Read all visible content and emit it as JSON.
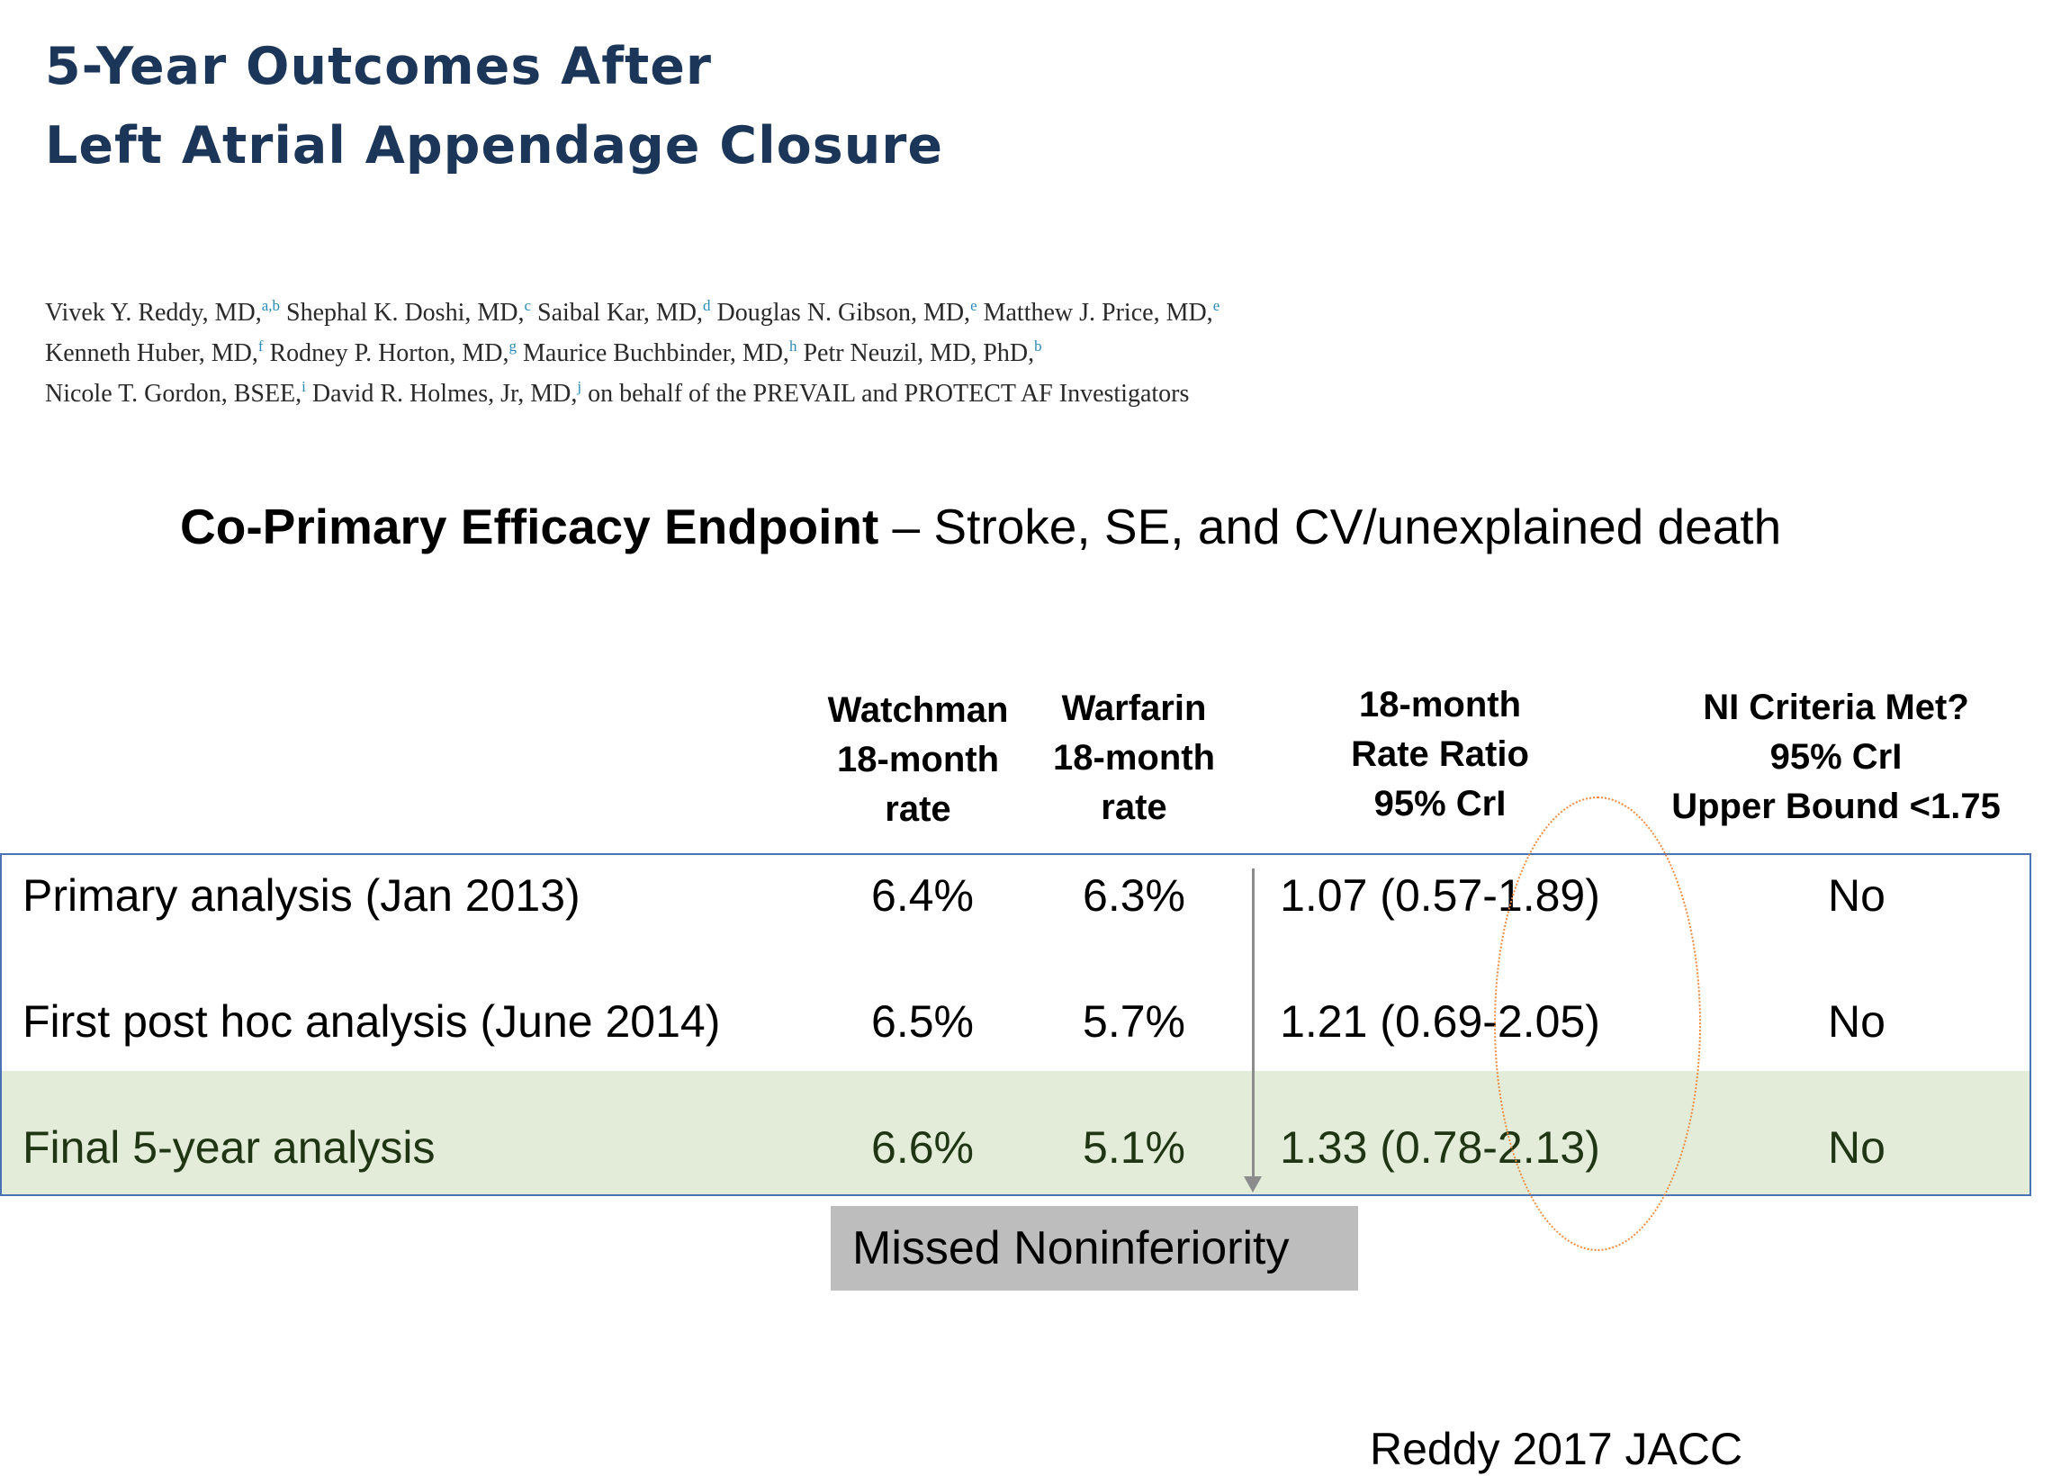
{
  "title": {
    "line1": "5-Year Outcomes After",
    "line2": "Left Atrial Appendage Closure"
  },
  "authors": {
    "a1": "Vivek Y. Reddy, MD,",
    "a1_sup": "a,b",
    "a2": "Shephal K. Doshi, MD,",
    "a2_sup": "c",
    "a3": "Saibal Kar, MD,",
    "a3_sup": "d",
    "a4": "Douglas N. Gibson, MD,",
    "a4_sup": "e",
    "a5": "Matthew J. Price, MD,",
    "a5_sup": "e",
    "a6": "Kenneth Huber, MD,",
    "a6_sup": "f",
    "a7": "Rodney P. Horton, MD,",
    "a7_sup": "g",
    "a8": "Maurice Buchbinder, MD,",
    "a8_sup": "h",
    "a9": "Petr Neuzil, MD, PhD,",
    "a9_sup": "b",
    "a10": "Nicole T. Gordon, BSEE,",
    "a10_sup": "i",
    "a11": "David R. Holmes, Jr, MD,",
    "a11_sup": "j",
    "tail": "on behalf of the PREVAIL and PROTECT AF Investigators"
  },
  "subtitle": {
    "bold": "Co-Primary Efficacy Endpoint",
    "rest": " – Stroke, SE, and CV/unexplained death"
  },
  "columns": {
    "watchman": [
      "Watchman",
      "18-month",
      "rate"
    ],
    "warfarin": [
      "Warfarin",
      "18-month",
      "rate"
    ],
    "ratio": [
      "18-month",
      "Rate Ratio",
      "95% CrI"
    ],
    "ni": [
      "NI Criteria Met?",
      "95% CrI",
      "Upper Bound <1.75"
    ]
  },
  "rows": [
    {
      "label": "Primary analysis (Jan 2013)",
      "watchman": "6.4%",
      "warfarin": "6.3%",
      "ratio": "1.07 (0.57-1.89)",
      "ni": "No"
    },
    {
      "label": "First post hoc analysis (June 2014)",
      "watchman": "6.5%",
      "warfarin": "5.7%",
      "ratio": "1.21 (0.69-2.05)",
      "ni": "No"
    },
    {
      "label": "Final 5-year analysis",
      "watchman": "6.6%",
      "warfarin": "5.1%",
      "ratio": "1.33 (0.78-2.13)",
      "ni": "No"
    }
  ],
  "callout": "Missed Noninferiority",
  "citation": "Reddy 2017 JACC",
  "colors": {
    "title": "#1b3658",
    "table_border": "#4a73b5",
    "highlight_row": "#e2ecd9",
    "final_row_text": "#1f3513",
    "callout_bg": "#bdbdbd",
    "ellipse": "#f08a3c"
  }
}
